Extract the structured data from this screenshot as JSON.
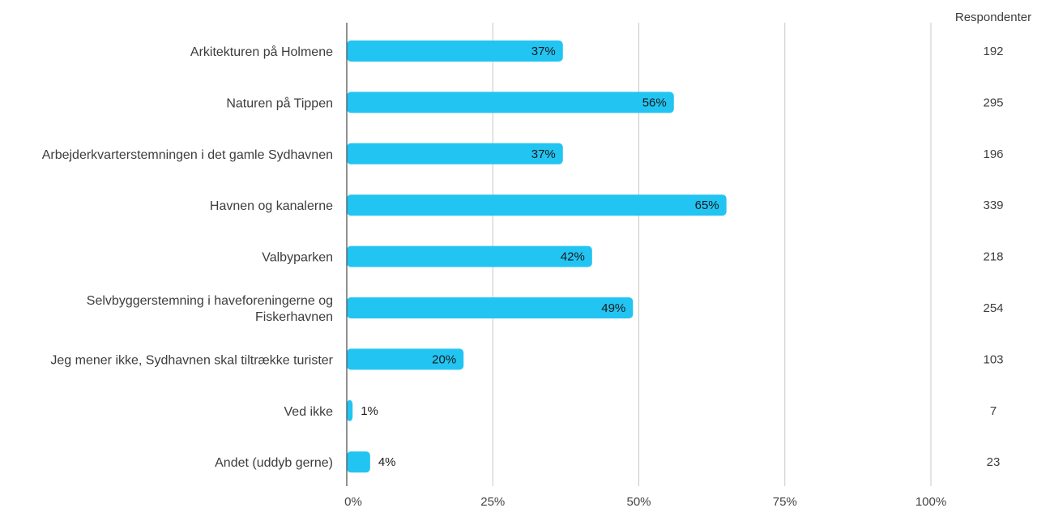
{
  "chart_data": {
    "type": "bar",
    "orientation": "horizontal",
    "categories": [
      [
        "Arkitekturen på Holmene"
      ],
      [
        "Naturen på Tippen"
      ],
      [
        "Arbejderkvarterstemningen i det gamle Sydhavnen"
      ],
      [
        "Havnen og kanalerne"
      ],
      [
        "Valbyparken"
      ],
      [
        "Selvbyggerstemning i haveforeningerne og",
        "Fiskerhavnen"
      ],
      [
        "Jeg mener ikke, Sydhavnen skal tiltrække turister"
      ],
      [
        "Ved ikke"
      ],
      [
        "Andet (uddyb gerne)"
      ]
    ],
    "values": [
      37,
      56,
      37,
      65,
      42,
      49,
      20,
      1,
      4
    ],
    "value_labels": [
      "37%",
      "56%",
      "37%",
      "65%",
      "42%",
      "49%",
      "20%",
      "1%",
      "4%"
    ],
    "xlim": [
      0,
      100
    ],
    "x_ticks": [
      0,
      25,
      50,
      75,
      100
    ],
    "x_tick_labels": [
      "0%",
      "25%",
      "50%",
      "75%",
      "100%"
    ],
    "grid": true,
    "bar_color": "#22C4F2",
    "respondents_header": "Respondenter",
    "respondents": [
      "192",
      "295",
      "196",
      "339",
      "218",
      "254",
      "103",
      "7",
      "23"
    ]
  }
}
